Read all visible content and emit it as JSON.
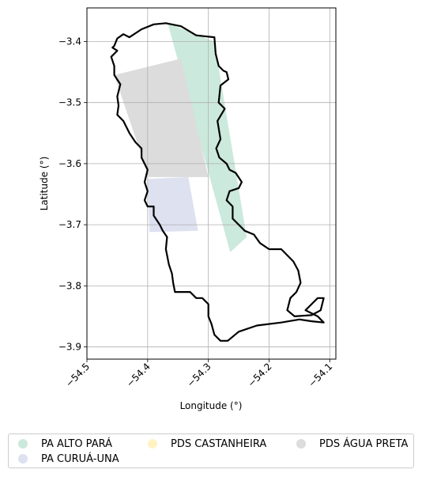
{
  "chart_data": {
    "type": "map",
    "title": "",
    "xlabel": "Longitude (°)",
    "ylabel": "Latitude (°)",
    "xlim": [
      -54.5,
      -54.09
    ],
    "ylim": [
      -3.92,
      -3.345
    ],
    "grid": true,
    "xticks": [
      -54.5,
      -54.4,
      -54.3,
      -54.2,
      -54.1
    ],
    "xtick_labels": [
      "−54.5",
      "−54.4",
      "−54.3",
      "−54.2",
      "−54.1"
    ],
    "yticks": [
      -3.4,
      -3.5,
      -3.6,
      -3.7,
      -3.8,
      -3.9
    ],
    "ytick_labels": [
      "−3.4",
      "−3.5",
      "−3.6",
      "−3.7",
      "−3.8",
      "−3.9"
    ],
    "legend_position": "bottom",
    "regions": [
      {
        "name": "PA ALTO PARÁ",
        "color": "#cbe9dc",
        "polygon": [
          [
            -54.367,
            -3.37
          ],
          [
            -54.29,
            -3.4
          ],
          [
            -54.237,
            -3.72
          ],
          [
            -54.264,
            -3.745
          ]
        ]
      },
      {
        "name": "PA CURUÁ-UNA",
        "color": "#dde1f0",
        "polygon": [
          [
            -54.4,
            -3.625
          ],
          [
            -54.333,
            -3.622
          ],
          [
            -54.317,
            -3.71
          ],
          [
            -54.397,
            -3.712
          ]
        ]
      },
      {
        "name": "PDS CASTANHEIRA",
        "color": "#fff3c4",
        "polygon": []
      },
      {
        "name": "PDS ÁGUA PRETA",
        "color": "#dcdcdc",
        "polygon": [
          [
            -54.455,
            -3.455
          ],
          [
            -54.345,
            -3.428
          ],
          [
            -54.3,
            -3.622
          ],
          [
            -54.398,
            -3.622
          ]
        ]
      }
    ],
    "boundary": [
      [
        -54.455,
        -3.407
      ],
      [
        -54.45,
        -3.395
      ],
      [
        -54.44,
        -3.388
      ],
      [
        -54.43,
        -3.393
      ],
      [
        -54.41,
        -3.38
      ],
      [
        -54.39,
        -3.372
      ],
      [
        -54.37,
        -3.37
      ],
      [
        -54.345,
        -3.375
      ],
      [
        -54.32,
        -3.39
      ],
      [
        -54.29,
        -3.393
      ],
      [
        -54.288,
        -3.42
      ],
      [
        -54.283,
        -3.44
      ],
      [
        -54.275,
        -3.448
      ],
      [
        -54.27,
        -3.45
      ],
      [
        -54.267,
        -3.462
      ],
      [
        -54.28,
        -3.472
      ],
      [
        -54.283,
        -3.5
      ],
      [
        -54.273,
        -3.51
      ],
      [
        -54.285,
        -3.53
      ],
      [
        -54.28,
        -3.56
      ],
      [
        -54.287,
        -3.575
      ],
      [
        -54.282,
        -3.59
      ],
      [
        -54.27,
        -3.6
      ],
      [
        -54.265,
        -3.61
      ],
      [
        -54.255,
        -3.615
      ],
      [
        -54.245,
        -3.63
      ],
      [
        -54.25,
        -3.64
      ],
      [
        -54.265,
        -3.645
      ],
      [
        -54.27,
        -3.66
      ],
      [
        -54.26,
        -3.67
      ],
      [
        -54.26,
        -3.69
      ],
      [
        -54.24,
        -3.71
      ],
      [
        -54.225,
        -3.716
      ],
      [
        -54.215,
        -3.73
      ],
      [
        -54.2,
        -3.74
      ],
      [
        -54.18,
        -3.74
      ],
      [
        -54.16,
        -3.76
      ],
      [
        -54.152,
        -3.775
      ],
      [
        -54.148,
        -3.795
      ],
      [
        -54.155,
        -3.81
      ],
      [
        -54.165,
        -3.82
      ],
      [
        -54.17,
        -3.84
      ],
      [
        -54.158,
        -3.85
      ],
      [
        -54.13,
        -3.848
      ],
      [
        -54.115,
        -3.84
      ],
      [
        -54.11,
        -3.82
      ],
      [
        -54.12,
        -3.82
      ],
      [
        -54.13,
        -3.83
      ],
      [
        -54.14,
        -3.84
      ],
      [
        -54.12,
        -3.85
      ],
      [
        -54.11,
        -3.86
      ],
      [
        -54.13,
        -3.858
      ],
      [
        -54.15,
        -3.855
      ],
      [
        -54.18,
        -3.86
      ],
      [
        -54.22,
        -3.865
      ],
      [
        -54.25,
        -3.875
      ],
      [
        -54.268,
        -3.89
      ],
      [
        -54.28,
        -3.89
      ],
      [
        -54.29,
        -3.88
      ],
      [
        -54.295,
        -3.862
      ],
      [
        -54.3,
        -3.85
      ],
      [
        -54.3,
        -3.83
      ],
      [
        -54.31,
        -3.82
      ],
      [
        -54.32,
        -3.82
      ],
      [
        -54.33,
        -3.81
      ],
      [
        -54.355,
        -3.81
      ],
      [
        -54.358,
        -3.795
      ],
      [
        -54.36,
        -3.78
      ],
      [
        -54.365,
        -3.765
      ],
      [
        -54.37,
        -3.74
      ],
      [
        -54.368,
        -3.72
      ],
      [
        -54.375,
        -3.71
      ],
      [
        -54.38,
        -3.7
      ],
      [
        -54.39,
        -3.685
      ],
      [
        -54.39,
        -3.67
      ],
      [
        -54.4,
        -3.67
      ],
      [
        -54.405,
        -3.66
      ],
      [
        -54.4,
        -3.645
      ],
      [
        -54.405,
        -3.63
      ],
      [
        -54.4,
        -3.61
      ],
      [
        -54.41,
        -3.59
      ],
      [
        -54.41,
        -3.575
      ],
      [
        -54.42,
        -3.565
      ],
      [
        -54.43,
        -3.55
      ],
      [
        -54.44,
        -3.53
      ],
      [
        -54.45,
        -3.52
      ],
      [
        -54.448,
        -3.505
      ],
      [
        -54.45,
        -3.49
      ],
      [
        -54.445,
        -3.47
      ],
      [
        -54.455,
        -3.455
      ],
      [
        -54.455,
        -3.44
      ],
      [
        -54.46,
        -3.425
      ],
      [
        -54.45,
        -3.415
      ],
      [
        -54.458,
        -3.41
      ],
      [
        -54.455,
        -3.407
      ]
    ]
  },
  "legend": {
    "items": [
      {
        "label": "PA ALTO PARÁ",
        "color": "#cbe9dc"
      },
      {
        "label": "PDS CASTANHEIRA",
        "color": "#fff3c4"
      },
      {
        "label": "PDS ÁGUA PRETA",
        "color": "#dcdcdc"
      },
      {
        "label": "PA CURUÁ-UNA",
        "color": "#dde1f0"
      }
    ]
  }
}
